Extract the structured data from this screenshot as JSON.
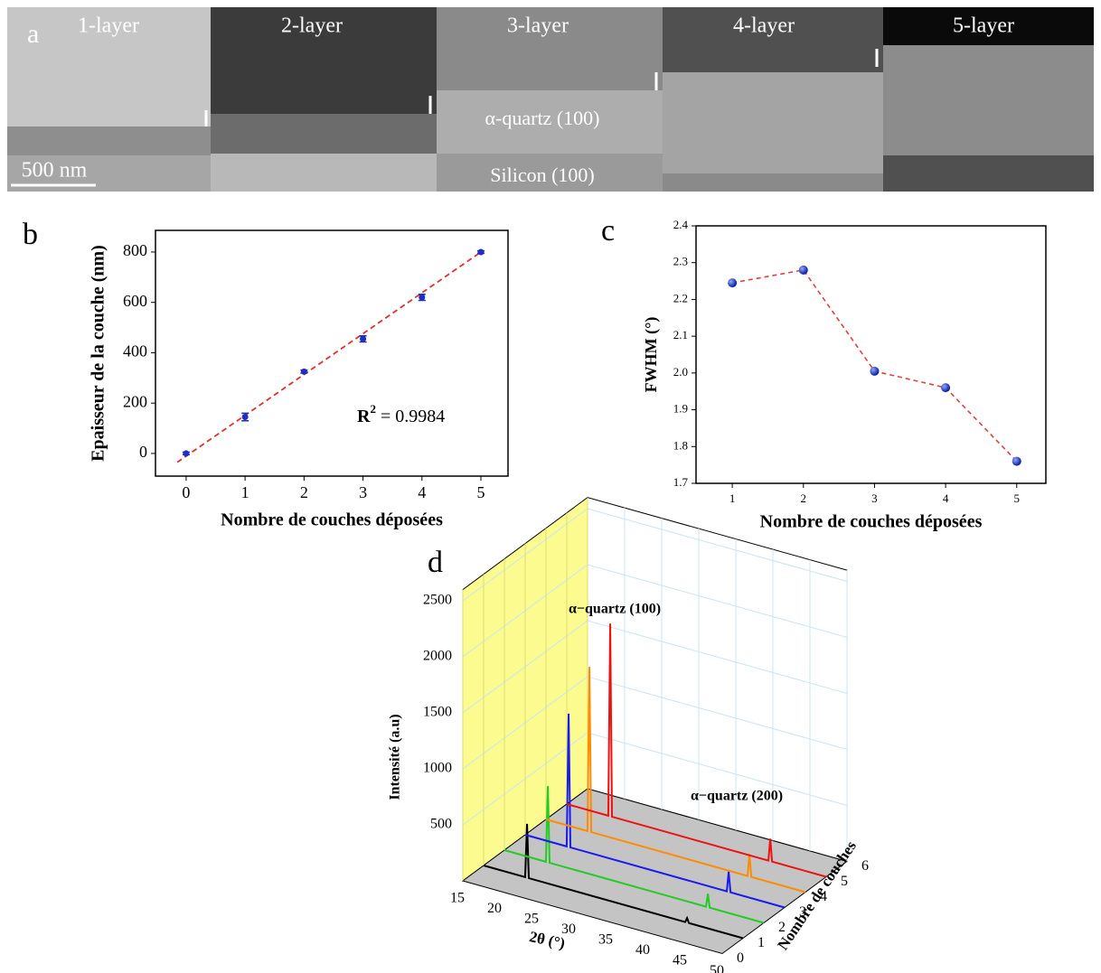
{
  "panel_a": {
    "label": "a",
    "tiles": [
      "1-layer",
      "2-layer",
      "3-layer",
      "4-layer",
      "5-layer"
    ],
    "film_label": "α-quartz (100)",
    "substrate_label": "Silicon (100)",
    "scale_bar": "500 nm"
  },
  "chart_data": [
    {
      "type": "scatter",
      "panel_label": "b",
      "x": [
        0,
        1,
        2,
        3,
        4,
        5
      ],
      "values": [
        0,
        145,
        325,
        455,
        620,
        800
      ],
      "errors": [
        5,
        15,
        6,
        12,
        12,
        5
      ],
      "color": "#1f2fc0",
      "fit": {
        "x": [
          -0.15,
          5
        ],
        "values": [
          -35,
          800
        ],
        "color": "#e03030"
      },
      "xlim": [
        -0.52,
        5.46
      ],
      "ylim": [
        -90,
        886
      ],
      "xticks": [
        0,
        1,
        2,
        3,
        4,
        5
      ],
      "yticks": [
        0,
        200,
        400,
        600,
        800
      ],
      "x_label": "Nombre de couches déposées",
      "y_label": "Epaisseur de la couche (nm)",
      "annotation": {
        "base": "R",
        "sup": "2",
        "text": " = 0.9984"
      }
    },
    {
      "type": "line",
      "panel_label": "c",
      "x": [
        1,
        2,
        3,
        4,
        5
      ],
      "values": [
        2.245,
        2.28,
        2.005,
        1.96,
        1.76
      ],
      "color": "#1a2fd0",
      "line_color": "#e04040",
      "xlim": [
        0.49,
        5.41
      ],
      "ylim": [
        1.7,
        2.4
      ],
      "xticks": [
        1,
        2,
        3,
        4,
        5
      ],
      "yticks": [
        1.7,
        1.8,
        1.9,
        {
          "value": 2,
          "label": "2.0"
        },
        2.1,
        2.2,
        2.3,
        2.4
      ],
      "x_label": "Nombre de couches déposées",
      "y_label": "FWHM (°)"
    },
    {
      "type": "waterfall3d",
      "panel_label": "d",
      "xlim": [
        15,
        50
      ],
      "xticks": [
        15,
        20,
        25,
        30,
        35,
        40,
        45,
        50
      ],
      "ylim": [
        0,
        2600
      ],
      "yticks": [
        500,
        1000,
        1500,
        2000,
        2500
      ],
      "zlim": [
        0,
        6
      ],
      "zticks": [
        0,
        1,
        2,
        3,
        4,
        5,
        6
      ],
      "x_label": "2θ (°)",
      "y_label": "Intensité (a.u)",
      "z_label": "Nombre de couches",
      "annotations": [
        "α−quartz (100)",
        "α−quartz (200)"
      ],
      "x": [
        15,
        20.6,
        20.86,
        21.1,
        42.2,
        42.45,
        42.7,
        50
      ],
      "series": [
        {
          "depth": 1,
          "color": "#000000",
          "values": [
            0,
            0,
            480,
            0,
            0,
            40,
            0,
            0
          ]
        },
        {
          "depth": 2,
          "color": "#22cc22",
          "values": [
            0,
            0,
            680,
            0,
            0,
            120,
            0,
            0
          ]
        },
        {
          "depth": 3,
          "color": "#1a1aee",
          "values": [
            0,
            0,
            1190,
            0,
            0,
            180,
            0,
            0
          ]
        },
        {
          "depth": 4,
          "color": "#ff8c00",
          "values": [
            0,
            0,
            1470,
            0,
            0,
            200,
            0,
            0
          ]
        },
        {
          "depth": 5,
          "color": "#ee1111",
          "values": [
            0,
            0,
            1720,
            0,
            0,
            200,
            0,
            0
          ]
        }
      ]
    }
  ]
}
